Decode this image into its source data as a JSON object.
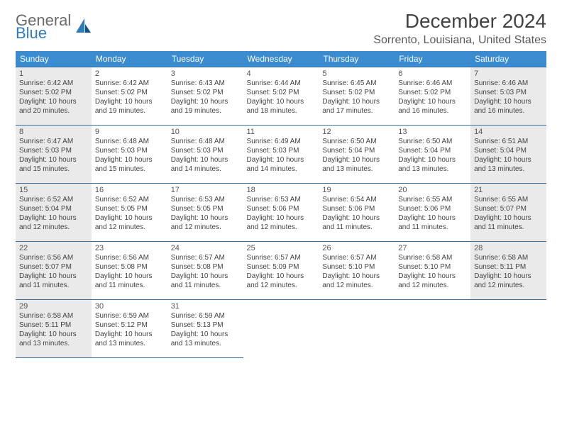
{
  "logo": {
    "word1": "General",
    "word2": "Blue"
  },
  "title": "December 2024",
  "location": "Sorrento, Louisiana, United States",
  "header_bg": "#3a8bcf",
  "border_color": "#3a6fa0",
  "shaded_bg": "#eaeaea",
  "weekdays": [
    "Sunday",
    "Monday",
    "Tuesday",
    "Wednesday",
    "Thursday",
    "Friday",
    "Saturday"
  ],
  "labels": {
    "sunrise": "Sunrise: ",
    "sunset": "Sunset: ",
    "daylight": "Daylight: "
  },
  "weeks": [
    [
      {
        "n": "1",
        "sr": "6:42 AM",
        "ss": "5:02 PM",
        "dl": "10 hours and 20 minutes.",
        "shaded": true
      },
      {
        "n": "2",
        "sr": "6:42 AM",
        "ss": "5:02 PM",
        "dl": "10 hours and 19 minutes."
      },
      {
        "n": "3",
        "sr": "6:43 AM",
        "ss": "5:02 PM",
        "dl": "10 hours and 19 minutes."
      },
      {
        "n": "4",
        "sr": "6:44 AM",
        "ss": "5:02 PM",
        "dl": "10 hours and 18 minutes."
      },
      {
        "n": "5",
        "sr": "6:45 AM",
        "ss": "5:02 PM",
        "dl": "10 hours and 17 minutes."
      },
      {
        "n": "6",
        "sr": "6:46 AM",
        "ss": "5:02 PM",
        "dl": "10 hours and 16 minutes."
      },
      {
        "n": "7",
        "sr": "6:46 AM",
        "ss": "5:03 PM",
        "dl": "10 hours and 16 minutes.",
        "shaded": true
      }
    ],
    [
      {
        "n": "8",
        "sr": "6:47 AM",
        "ss": "5:03 PM",
        "dl": "10 hours and 15 minutes.",
        "shaded": true
      },
      {
        "n": "9",
        "sr": "6:48 AM",
        "ss": "5:03 PM",
        "dl": "10 hours and 15 minutes."
      },
      {
        "n": "10",
        "sr": "6:48 AM",
        "ss": "5:03 PM",
        "dl": "10 hours and 14 minutes."
      },
      {
        "n": "11",
        "sr": "6:49 AM",
        "ss": "5:03 PM",
        "dl": "10 hours and 14 minutes."
      },
      {
        "n": "12",
        "sr": "6:50 AM",
        "ss": "5:04 PM",
        "dl": "10 hours and 13 minutes."
      },
      {
        "n": "13",
        "sr": "6:50 AM",
        "ss": "5:04 PM",
        "dl": "10 hours and 13 minutes."
      },
      {
        "n": "14",
        "sr": "6:51 AM",
        "ss": "5:04 PM",
        "dl": "10 hours and 13 minutes.",
        "shaded": true
      }
    ],
    [
      {
        "n": "15",
        "sr": "6:52 AM",
        "ss": "5:04 PM",
        "dl": "10 hours and 12 minutes.",
        "shaded": true
      },
      {
        "n": "16",
        "sr": "6:52 AM",
        "ss": "5:05 PM",
        "dl": "10 hours and 12 minutes."
      },
      {
        "n": "17",
        "sr": "6:53 AM",
        "ss": "5:05 PM",
        "dl": "10 hours and 12 minutes."
      },
      {
        "n": "18",
        "sr": "6:53 AM",
        "ss": "5:06 PM",
        "dl": "10 hours and 12 minutes."
      },
      {
        "n": "19",
        "sr": "6:54 AM",
        "ss": "5:06 PM",
        "dl": "10 hours and 11 minutes."
      },
      {
        "n": "20",
        "sr": "6:55 AM",
        "ss": "5:06 PM",
        "dl": "10 hours and 11 minutes."
      },
      {
        "n": "21",
        "sr": "6:55 AM",
        "ss": "5:07 PM",
        "dl": "10 hours and 11 minutes.",
        "shaded": true
      }
    ],
    [
      {
        "n": "22",
        "sr": "6:56 AM",
        "ss": "5:07 PM",
        "dl": "10 hours and 11 minutes.",
        "shaded": true
      },
      {
        "n": "23",
        "sr": "6:56 AM",
        "ss": "5:08 PM",
        "dl": "10 hours and 11 minutes."
      },
      {
        "n": "24",
        "sr": "6:57 AM",
        "ss": "5:08 PM",
        "dl": "10 hours and 11 minutes."
      },
      {
        "n": "25",
        "sr": "6:57 AM",
        "ss": "5:09 PM",
        "dl": "10 hours and 12 minutes."
      },
      {
        "n": "26",
        "sr": "6:57 AM",
        "ss": "5:10 PM",
        "dl": "10 hours and 12 minutes."
      },
      {
        "n": "27",
        "sr": "6:58 AM",
        "ss": "5:10 PM",
        "dl": "10 hours and 12 minutes."
      },
      {
        "n": "28",
        "sr": "6:58 AM",
        "ss": "5:11 PM",
        "dl": "10 hours and 12 minutes.",
        "shaded": true
      }
    ],
    [
      {
        "n": "29",
        "sr": "6:58 AM",
        "ss": "5:11 PM",
        "dl": "10 hours and 13 minutes.",
        "shaded": true
      },
      {
        "n": "30",
        "sr": "6:59 AM",
        "ss": "5:12 PM",
        "dl": "10 hours and 13 minutes."
      },
      {
        "n": "31",
        "sr": "6:59 AM",
        "ss": "5:13 PM",
        "dl": "10 hours and 13 minutes."
      },
      null,
      null,
      null,
      null
    ]
  ]
}
